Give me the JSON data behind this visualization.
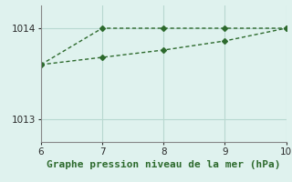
{
  "line1_x": [
    6,
    7,
    8,
    9,
    10
  ],
  "line1_y": [
    1013.6,
    1014.0,
    1014.0,
    1014.0,
    1014.0
  ],
  "line2_x": [
    6,
    7,
    8,
    9,
    10
  ],
  "line2_y": [
    1013.6,
    1013.68,
    1013.76,
    1013.86,
    1014.0
  ],
  "line_color": "#2d6a2d",
  "background_color": "#dff2ee",
  "xlabel": "Graphe pression niveau de la mer (hPa)",
  "xlim": [
    6,
    10
  ],
  "ylim": [
    1012.75,
    1014.25
  ],
  "yticks": [
    1013,
    1014
  ],
  "xticks": [
    6,
    7,
    8,
    9,
    10
  ],
  "grid_color": "#b8d8d0",
  "marker": "D",
  "markersize": 3.0,
  "linewidth": 1.0,
  "tick_fontsize": 7.5,
  "xlabel_fontsize": 8.0
}
